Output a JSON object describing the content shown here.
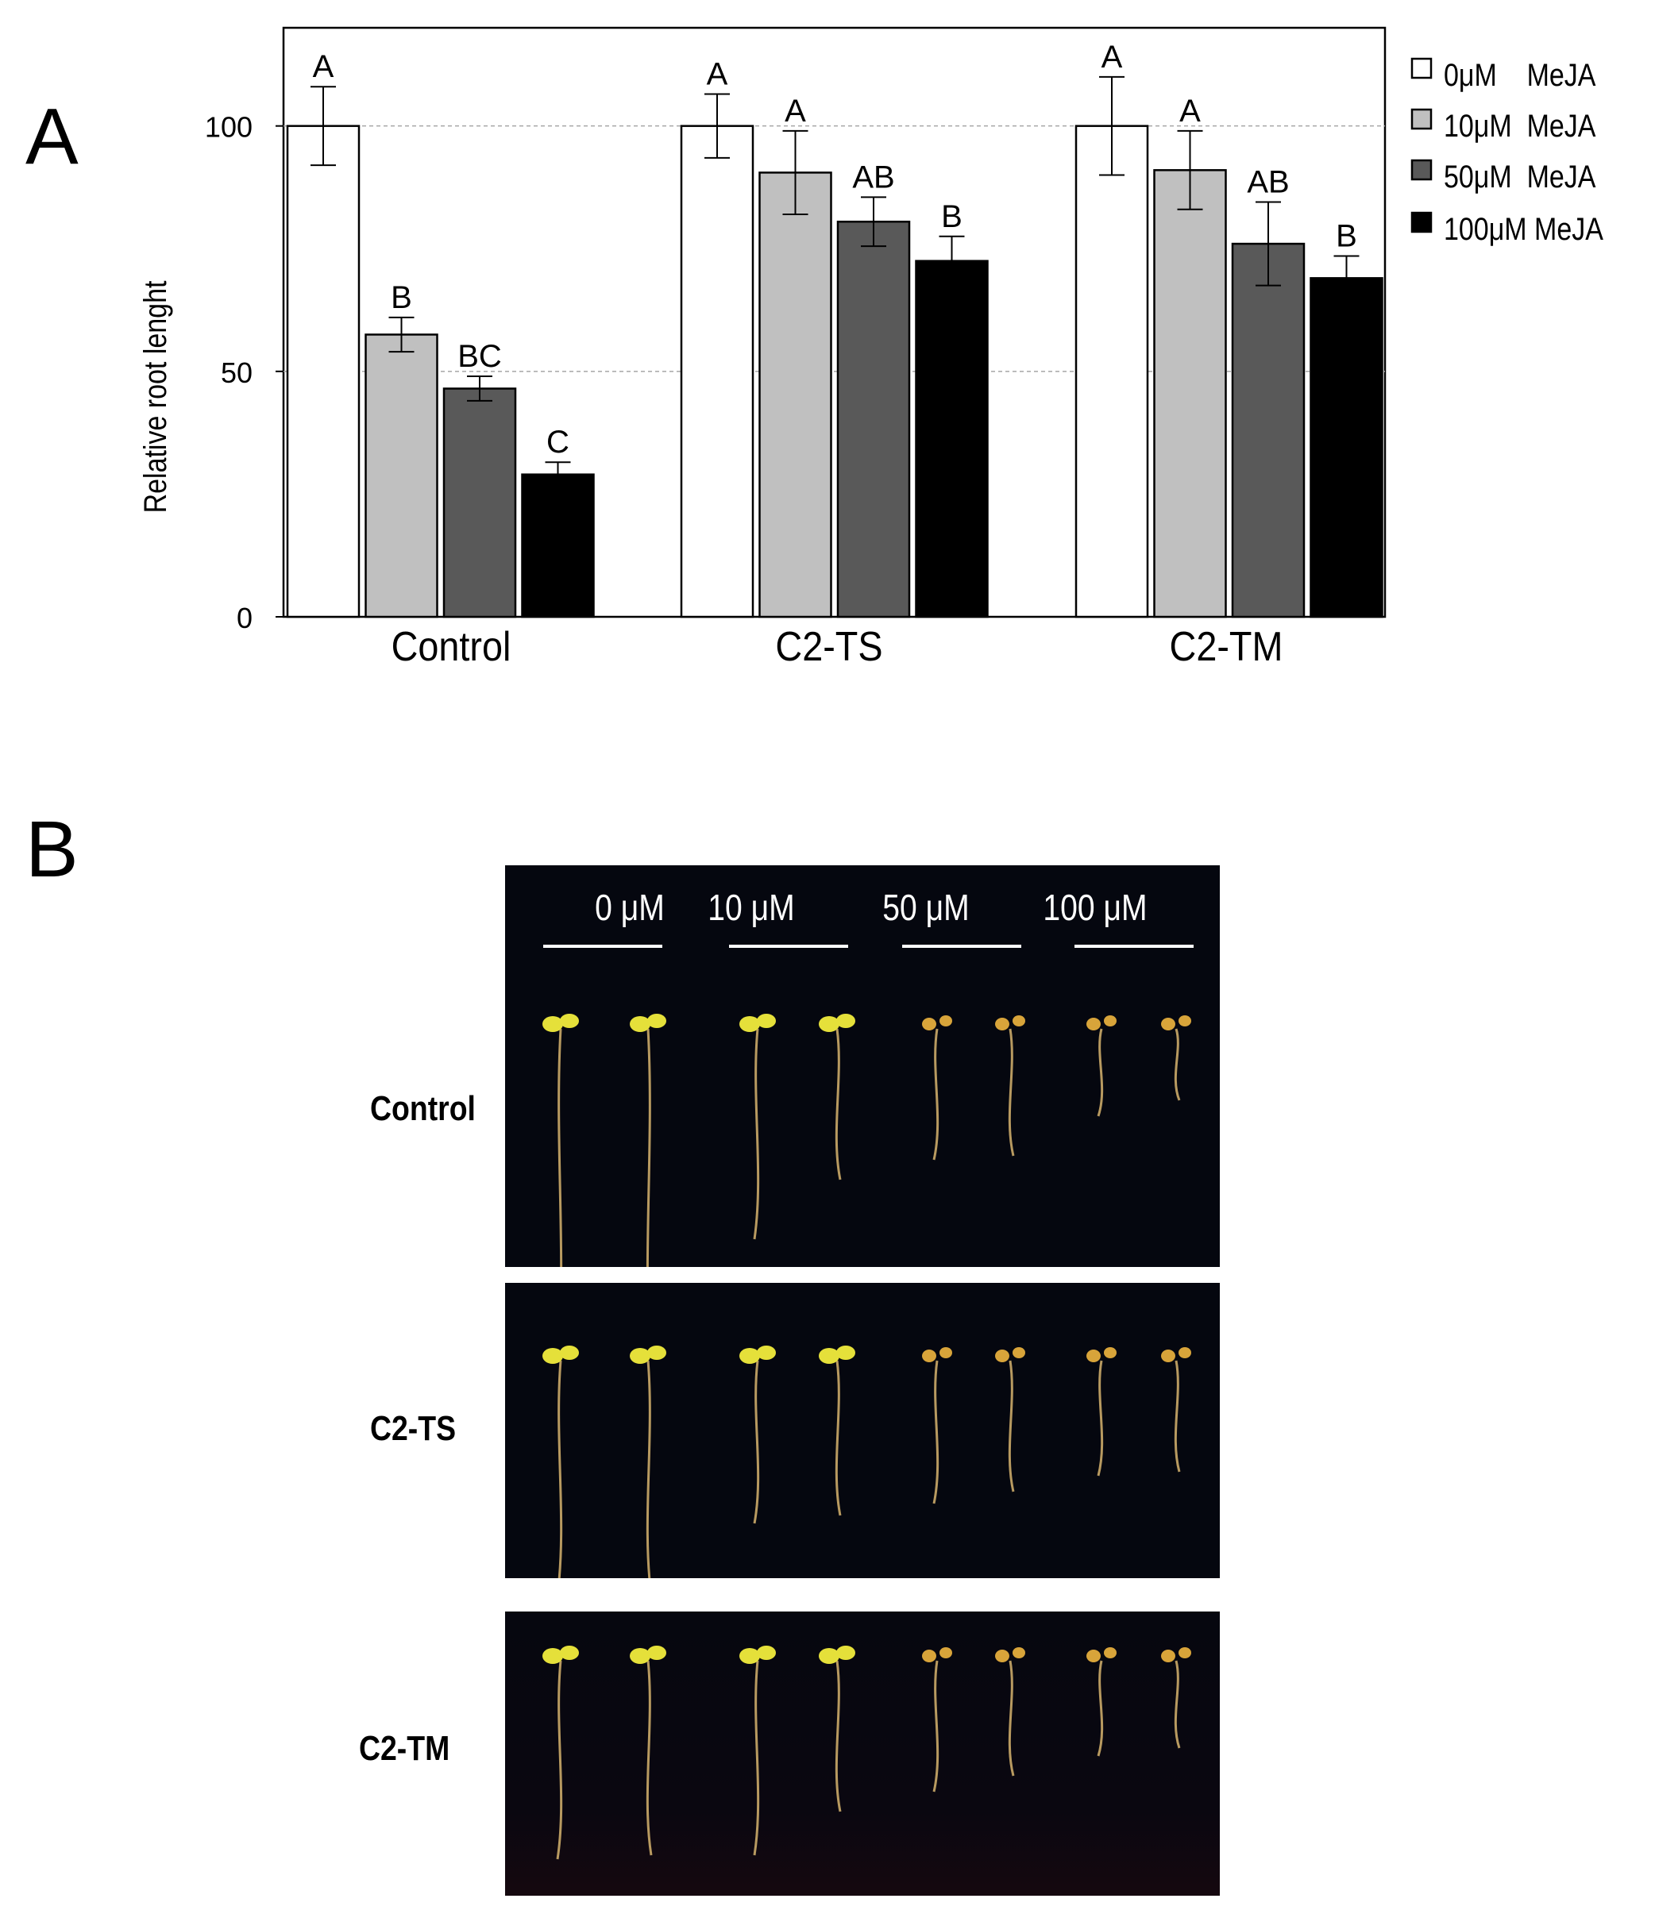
{
  "panels": {
    "a": "A",
    "b": "B"
  },
  "chart_data": {
    "type": "bar",
    "categories": [
      "Control",
      "C2-TS",
      "C2-TM"
    ],
    "ylabel": "Relative root  lenght",
    "ylim": [
      0,
      120
    ],
    "yticks": [
      0,
      50,
      100
    ],
    "gridlines": [
      50,
      100
    ],
    "grid": "dashed horizontal at 50 and 100",
    "legend_position": "right, outside plot",
    "series": [
      {
        "name": "0μM    MeJA",
        "color": "#ffffff",
        "values": [
          100,
          100,
          100
        ],
        "errors": [
          8,
          6.5,
          10
        ],
        "letters": [
          "A",
          "A",
          "A"
        ]
      },
      {
        "name": "10μM  MeJA",
        "color": "#c0c0c0",
        "values": [
          57.5,
          90.5,
          91
        ],
        "errors": [
          3.5,
          8.5,
          8
        ],
        "letters": [
          "B",
          "A",
          "A"
        ]
      },
      {
        "name": "50μM  MeJA",
        "color": "#595959",
        "values": [
          46.5,
          80.5,
          76
        ],
        "errors": [
          2.5,
          5,
          8.5
        ],
        "letters": [
          "BC",
          "AB",
          "AB"
        ]
      },
      {
        "name": "100μM MeJA",
        "color": "#000000",
        "values": [
          29,
          72.5,
          69
        ],
        "errors": [
          2.5,
          5,
          4.5
        ],
        "letters": [
          "C",
          "B",
          "B"
        ]
      }
    ]
  },
  "photos": {
    "concentrations": [
      "0 μM",
      "10 μM",
      "50 μM",
      "100 μM"
    ],
    "rows": [
      {
        "label": "Control",
        "root_lengths": [
          430,
          440,
          275,
          200,
          175,
          170,
          120,
          100
        ]
      },
      {
        "label": "C2-TS",
        "root_lengths": [
          305,
          305,
          215,
          205,
          190,
          175,
          155,
          150
        ]
      },
      {
        "label": "C2-TM",
        "root_lengths": [
          260,
          255,
          255,
          200,
          175,
          155,
          130,
          120
        ]
      }
    ]
  }
}
